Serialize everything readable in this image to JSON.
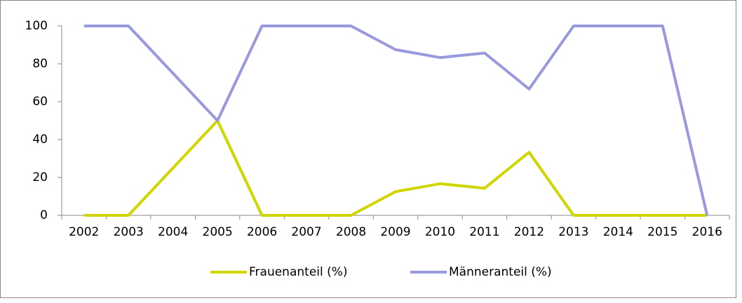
{
  "chart_data": {
    "type": "line",
    "categories": [
      "2002",
      "2003",
      "2004",
      "2005",
      "2006",
      "2007",
      "2008",
      "2009",
      "2010",
      "2011",
      "2012",
      "2013",
      "2014",
      "2015",
      "2016"
    ],
    "series": [
      {
        "name": "Frauenanteil (%)",
        "color": "#cfd600",
        "values": [
          0,
          0,
          25,
          50,
          0,
          0,
          0,
          12.5,
          16.7,
          14.3,
          33.3,
          0,
          0,
          0,
          0
        ]
      },
      {
        "name": "Männeranteil (%)",
        "color": "#9999dd",
        "values": [
          100,
          100,
          75,
          50,
          100,
          100,
          100,
          87.5,
          83.3,
          85.7,
          66.7,
          100,
          100,
          100,
          0
        ]
      }
    ],
    "ylim": [
      0,
      100
    ],
    "yticks": [
      0,
      20,
      40,
      60,
      80,
      100
    ],
    "legend": "bottom"
  }
}
